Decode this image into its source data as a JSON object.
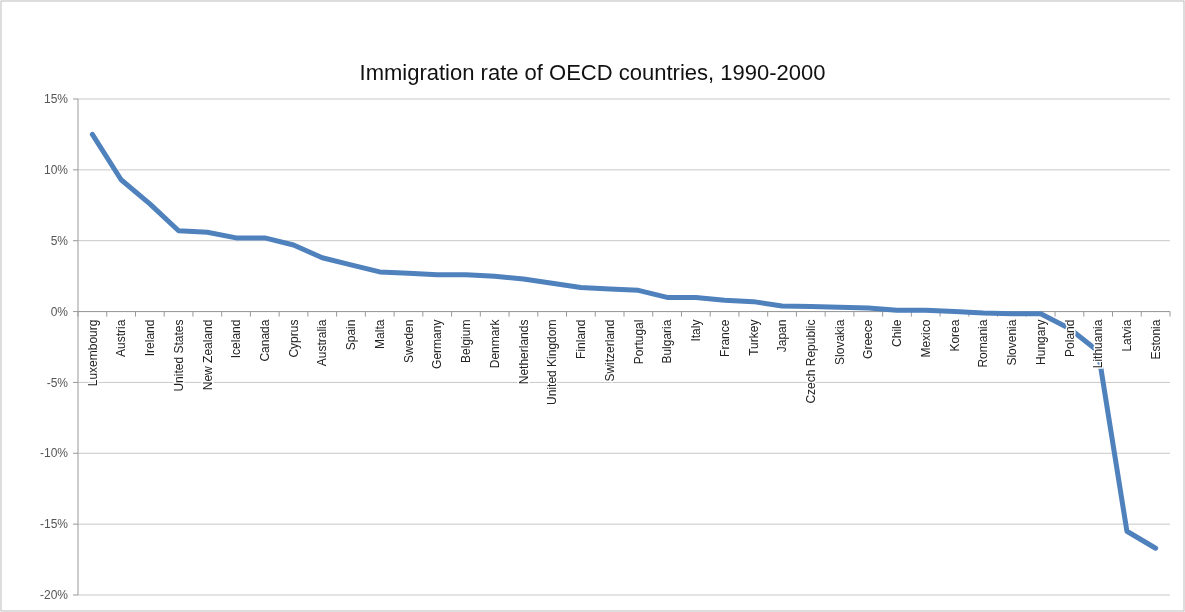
{
  "chart_data": {
    "type": "line",
    "title": "Immigration rate of OECD countries, 1990-2000",
    "categories": [
      "Luxembourg",
      "Austria",
      "Ireland",
      "United States",
      "New Zealand",
      "Iceland",
      "Canada",
      "Cyprus",
      "Australia",
      "Spain",
      "Malta",
      "Sweden",
      "Germany",
      "Belgium",
      "Denmark",
      "Netherlands",
      "United Kingdom",
      "Finland",
      "Switzerland",
      "Portugal",
      "Bulgaria",
      "Italy",
      "France",
      "Turkey",
      "Japan",
      "Czech Republic",
      "Slovakia",
      "Greece",
      "Chile",
      "Mexico",
      "Korea",
      "Romania",
      "Slovenia",
      "Hungary",
      "Poland",
      "Lithuania",
      "Latvia",
      "Estonia"
    ],
    "series": [
      {
        "color": "#4f81bd",
        "values": [
          12.5,
          9.3,
          7.6,
          5.7,
          5.6,
          5.2,
          5.2,
          4.7,
          3.8,
          3.3,
          2.8,
          2.7,
          2.6,
          2.6,
          2.5,
          2.3,
          2.0,
          1.7,
          1.6,
          1.5,
          1.0,
          1.0,
          0.8,
          0.7,
          0.4,
          0.35,
          0.3,
          0.25,
          0.1,
          0.1,
          0,
          -0.1,
          -0.15,
          -0.15,
          -1.2,
          -2.8,
          -15.5,
          -16.7
        ]
      }
    ],
    "ylim": [
      -20,
      15
    ],
    "yticks": [
      {
        "value": -20,
        "label": "-20%"
      },
      {
        "value": -15,
        "label": "-15%"
      },
      {
        "value": -10,
        "label": "-10%"
      },
      {
        "value": -5,
        "label": "-5%"
      },
      {
        "value": 0,
        "label": "0%"
      },
      {
        "value": 5,
        "label": "5%"
      },
      {
        "value": 10,
        "label": "10%"
      },
      {
        "value": 15,
        "label": "15%"
      }
    ],
    "grid": "y",
    "marker": "none",
    "line_style": "solid"
  }
}
